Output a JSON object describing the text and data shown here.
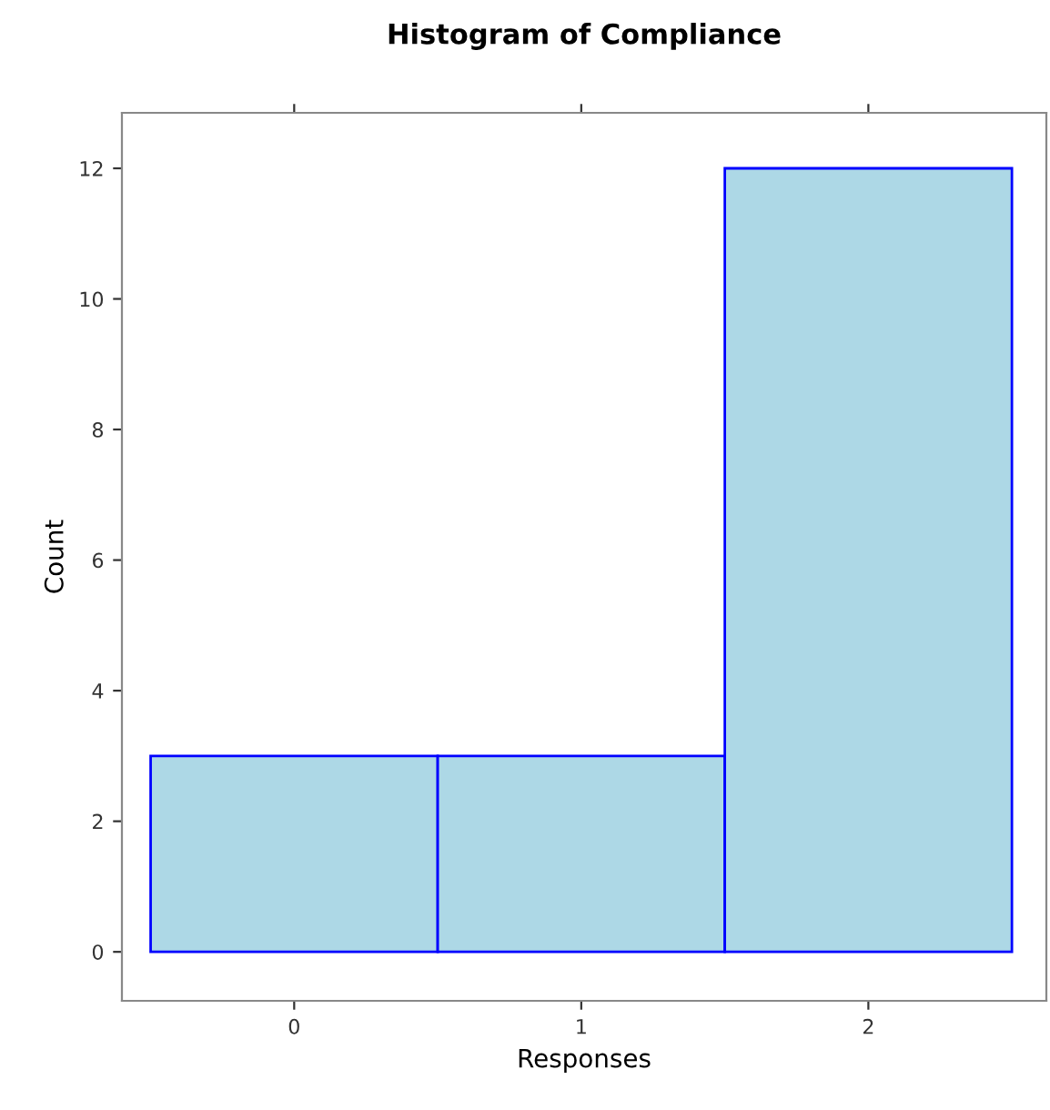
{
  "chart_data": {
    "type": "histogram",
    "title": "Histogram of Compliance",
    "xlabel": "Responses",
    "ylabel": "Count",
    "bins": [
      -0.5,
      0.5,
      1.5,
      2.5
    ],
    "values": [
      3,
      3,
      12
    ],
    "color": "#add8e6",
    "xlim": [
      -0.6,
      2.62
    ],
    "ylim": [
      -0.75,
      12.85
    ],
    "xticks": [
      0,
      1,
      2
    ],
    "yticks": [
      0,
      2,
      4,
      6,
      8,
      10,
      12
    ],
    "grid": false
  }
}
